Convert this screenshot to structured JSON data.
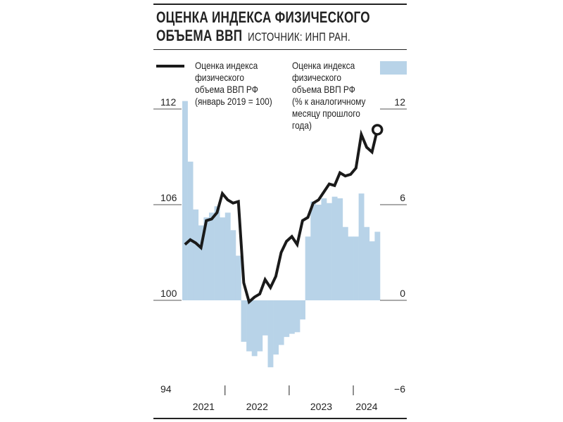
{
  "header": {
    "title_line1": "ОЦЕНКА ИНДЕКСА ФИЗИЧЕСКОГО",
    "title_line2": "ОБЪЕМА ВВП",
    "source": "ИСТОЧНИК: ИНП РАН."
  },
  "chart_data": {
    "type": "bar+line",
    "title": "Оценка индекса физического объема ВВП",
    "months": [
      "2021-05",
      "2021-06",
      "2021-07",
      "2021-08",
      "2021-09",
      "2021-10",
      "2021-11",
      "2021-12",
      "2022-01",
      "2022-02",
      "2022-03",
      "2022-04",
      "2022-05",
      "2022-06",
      "2022-07",
      "2022-08",
      "2022-09",
      "2022-10",
      "2022-11",
      "2022-12",
      "2023-01",
      "2023-02",
      "2023-03",
      "2023-04",
      "2023-05",
      "2023-06",
      "2023-07",
      "2023-08",
      "2023-09",
      "2023-10",
      "2023-11",
      "2023-12",
      "2024-01",
      "2024-02",
      "2024-03",
      "2024-04",
      "2024-05"
    ],
    "x_tick_labels": [
      "2021",
      "2022",
      "2023",
      "2024"
    ],
    "series": [
      {
        "name": "Оценка индекса физического объема ВВП РФ (январь 2019 = 100)",
        "type": "line",
        "axis": "left",
        "color": "#1a1a1a",
        "values": [
          103.5,
          103.8,
          103.6,
          103.3,
          105.0,
          105.1,
          105.5,
          106.7,
          106.3,
          106.1,
          106.2,
          101.1,
          99.9,
          100.2,
          100.4,
          101.3,
          100.8,
          101.5,
          103.0,
          103.7,
          104.0,
          103.5,
          105.0,
          105.2,
          106.1,
          106.3,
          106.8,
          107.3,
          107.2,
          108.0,
          107.8,
          107.9,
          108.3,
          110.4,
          109.6,
          109.3,
          110.7
        ]
      },
      {
        "name": "Оценка индекса физического объема ВВП РФ (% к аналогичному месяцу прошлого года)",
        "type": "bar",
        "axis": "right",
        "color": "#b8d3e8",
        "values": [
          12.5,
          8.7,
          5.7,
          4.7,
          5.2,
          5.5,
          5.9,
          5.2,
          5.5,
          4.4,
          2.8,
          -2.6,
          -3.2,
          -3.5,
          -3.2,
          -2.2,
          -4.2,
          -3.4,
          -2.8,
          -2.3,
          -2.1,
          -2.0,
          -1.2,
          4.0,
          6.2,
          6.0,
          6.4,
          6.1,
          6.5,
          6.4,
          4.6,
          4.0,
          4.0,
          6.7,
          4.6,
          3.7,
          4.3
        ]
      }
    ],
    "left_axis": {
      "range": [
        94,
        112
      ],
      "ticks": [
        "94",
        "100",
        "106",
        "112"
      ]
    },
    "right_axis": {
      "range": [
        -6,
        12
      ],
      "ticks": [
        "−6",
        "0",
        "6",
        "12"
      ]
    },
    "legend": {
      "line_label": "Оценка индекса\nфизического\nобъема ВВП РФ\n(январь 2019 = 100)",
      "bar_label": "Оценка индекса\nфизического\nобъема ВВП РФ\n(% к аналогичному\nмесяцу прошлого\nгода)"
    }
  }
}
